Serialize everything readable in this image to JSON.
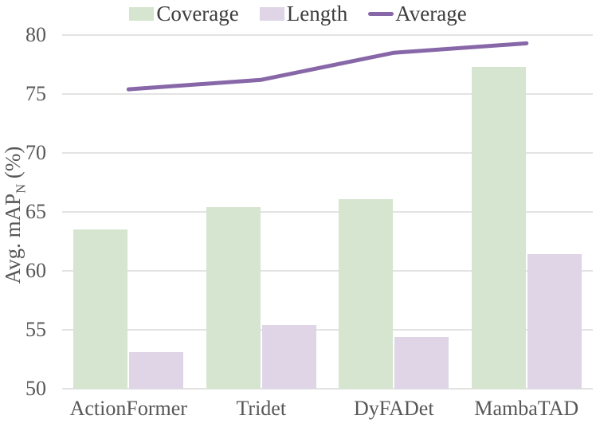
{
  "chart_data": {
    "type": "bar",
    "subtype": "grouped-bars-with-line-overlay",
    "categories": [
      "ActionFormer",
      "Tridet",
      "DyFADet",
      "MambaTAD"
    ],
    "series": [
      {
        "name": "Coverage",
        "render": "bar",
        "color": "#d5e5cf",
        "values": [
          63.5,
          65.4,
          66.1,
          77.3
        ]
      },
      {
        "name": "Length",
        "render": "bar",
        "color": "#dfd5e7",
        "values": [
          53.1,
          55.4,
          54.4,
          61.4
        ]
      },
      {
        "name": "Average",
        "render": "line",
        "color": "#8767a8",
        "values": [
          75.4,
          76.2,
          78.5,
          79.3
        ]
      }
    ],
    "title": "",
    "xlabel": "",
    "ylabel": "Avg. mAP_N (%)",
    "ylabel_parts": {
      "main": "Avg. mAP",
      "sub": "N",
      "suffix": " (%)"
    },
    "yticks": [
      50,
      55,
      60,
      65,
      70,
      75,
      80
    ],
    "ylim": [
      50,
      80
    ],
    "grid": true,
    "legend_position": "top"
  },
  "colors": {
    "background": "#ffffff",
    "gridline": "#e3e3e3",
    "axis_text": "#575757",
    "legend_text": "#3d3d3d"
  }
}
